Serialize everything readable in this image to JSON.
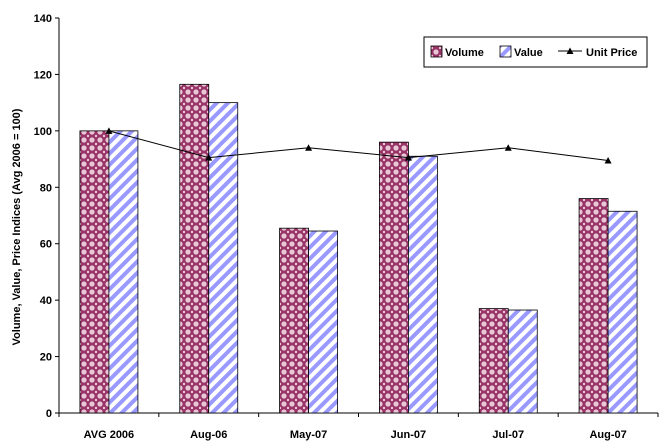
{
  "chart_data": {
    "type": "bar",
    "title": "",
    "xlabel": "",
    "ylabel": "Volume, Value, Price Indices (Avg 2006 = 100)",
    "ylim": [
      0,
      140
    ],
    "yticks": [
      0,
      20,
      40,
      60,
      80,
      100,
      120,
      140
    ],
    "categories": [
      "AVG 2006",
      "Aug-06",
      "May-07",
      "Jun-07",
      "Jul-07",
      "Aug-07"
    ],
    "series": [
      {
        "name": "Volume",
        "kind": "bar",
        "color": "#993366",
        "values": [
          100,
          116.5,
          65.5,
          96,
          37,
          76
        ]
      },
      {
        "name": "Value",
        "kind": "bar",
        "color": "#9999ff",
        "values": [
          100,
          110,
          64.5,
          91,
          36.5,
          71.5
        ]
      },
      {
        "name": "Unit Price",
        "kind": "line",
        "color": "#000000",
        "values": [
          100,
          90.5,
          94,
          90.5,
          94,
          89.5
        ]
      }
    ],
    "legend": "top-right",
    "grid": false
  }
}
